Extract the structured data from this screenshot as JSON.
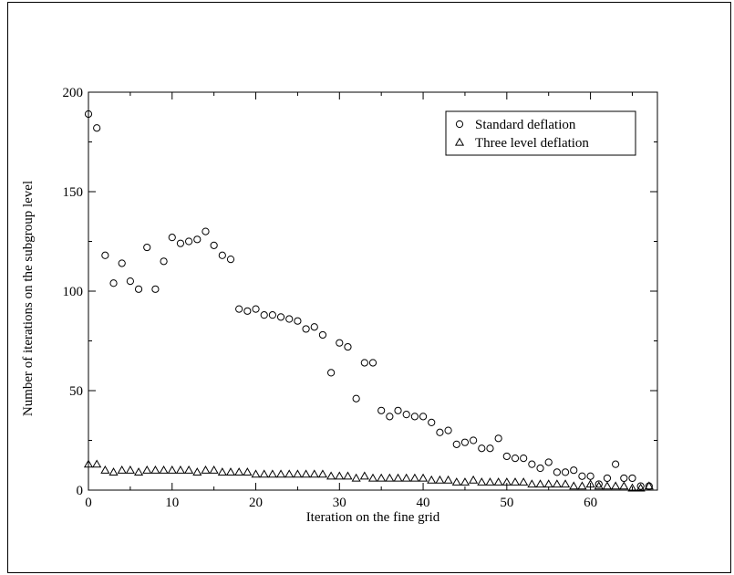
{
  "chart_data": {
    "type": "scatter",
    "title": "",
    "xlabel": "Iteration on the fine grid",
    "ylabel": "Number of iterations on the subgroup level",
    "xlim": [
      0,
      68
    ],
    "ylim": [
      0,
      200
    ],
    "xticks": [
      0,
      10,
      20,
      30,
      40,
      50,
      60
    ],
    "yticks": [
      0,
      50,
      100,
      150,
      200
    ],
    "grid": false,
    "legend_position": "top-right",
    "series": [
      {
        "name": "Standard deflation",
        "marker": "circle",
        "color": "#000000",
        "x": [
          0,
          1,
          2,
          3,
          4,
          5,
          6,
          7,
          8,
          9,
          10,
          11,
          12,
          13,
          14,
          15,
          16,
          17,
          18,
          19,
          20,
          21,
          22,
          23,
          24,
          25,
          26,
          27,
          28,
          29,
          30,
          31,
          32,
          33,
          34,
          35,
          36,
          37,
          38,
          39,
          40,
          41,
          42,
          43,
          44,
          45,
          46,
          47,
          48,
          49,
          50,
          51,
          52,
          53,
          54,
          55,
          56,
          57,
          58,
          59,
          60,
          61,
          62,
          63,
          64,
          65,
          66,
          67
        ],
        "y": [
          189,
          182,
          118,
          104,
          114,
          105,
          101,
          122,
          101,
          115,
          127,
          124,
          125,
          126,
          130,
          123,
          118,
          116,
          91,
          90,
          91,
          88,
          88,
          87,
          86,
          85,
          81,
          82,
          78,
          59,
          74,
          72,
          46,
          64,
          64,
          40,
          37,
          40,
          38,
          37,
          37,
          34,
          29,
          30,
          23,
          24,
          25,
          21,
          21,
          26,
          17,
          16,
          16,
          13,
          11,
          14,
          9,
          9,
          10,
          7,
          7,
          3,
          6,
          13,
          6,
          6,
          2,
          2
        ]
      },
      {
        "name": "Three level deflation",
        "marker": "triangle",
        "color": "#000000",
        "x": [
          0,
          1,
          2,
          3,
          4,
          5,
          6,
          7,
          8,
          9,
          10,
          11,
          12,
          13,
          14,
          15,
          16,
          17,
          18,
          19,
          20,
          21,
          22,
          23,
          24,
          25,
          26,
          27,
          28,
          29,
          30,
          31,
          32,
          33,
          34,
          35,
          36,
          37,
          38,
          39,
          40,
          41,
          42,
          43,
          44,
          45,
          46,
          47,
          48,
          49,
          50,
          51,
          52,
          53,
          54,
          55,
          56,
          57,
          58,
          59,
          60,
          61,
          62,
          63,
          64,
          65,
          66,
          67
        ],
        "y": [
          13,
          13,
          10,
          9,
          10,
          10,
          9,
          10,
          10,
          10,
          10,
          10,
          10,
          9,
          10,
          10,
          9,
          9,
          9,
          9,
          8,
          8,
          8,
          8,
          8,
          8,
          8,
          8,
          8,
          7,
          7,
          7,
          6,
          7,
          6,
          6,
          6,
          6,
          6,
          6,
          6,
          5,
          5,
          5,
          4,
          4,
          5,
          4,
          4,
          4,
          4,
          4,
          4,
          3,
          3,
          3,
          3,
          3,
          2,
          2,
          3,
          2,
          2,
          2,
          2,
          1,
          1,
          2
        ]
      }
    ]
  }
}
